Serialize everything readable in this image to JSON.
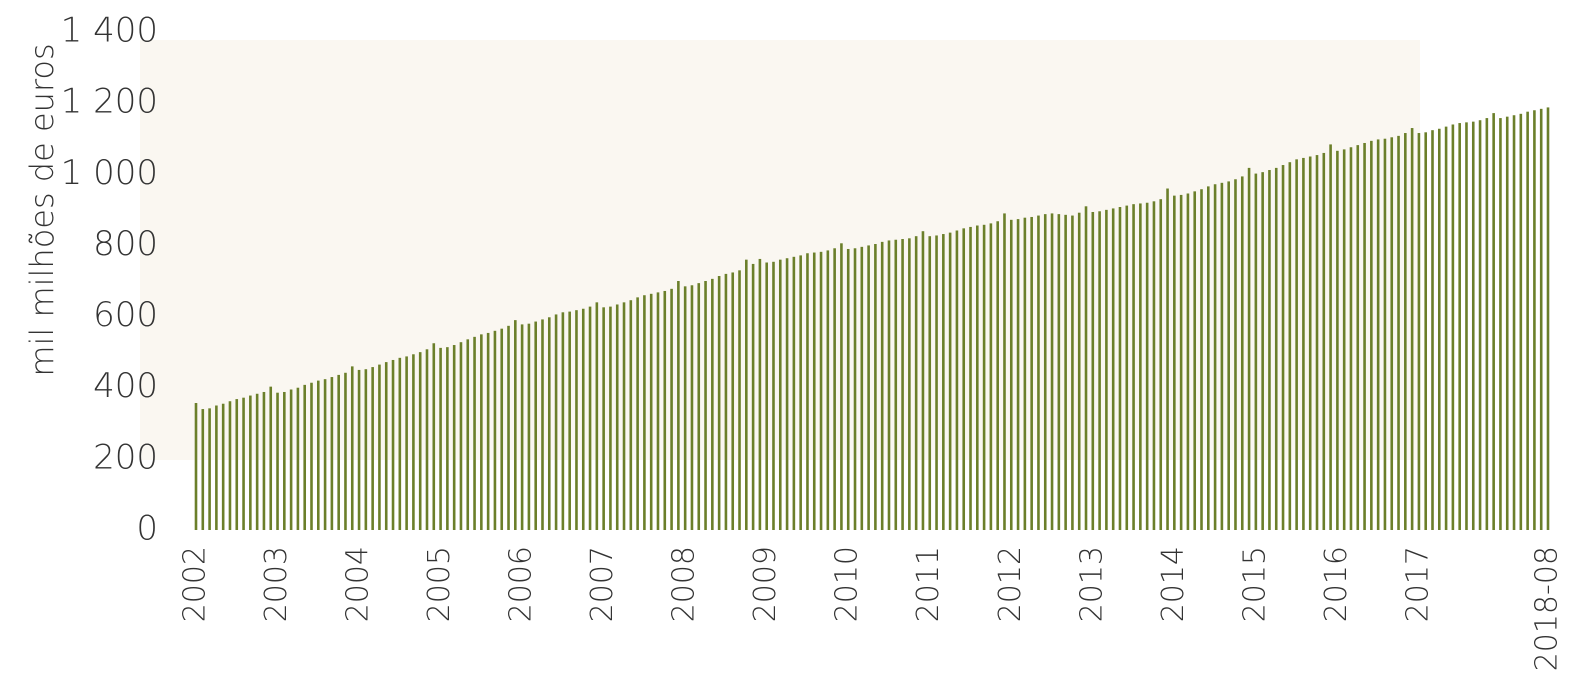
{
  "chart_data": {
    "type": "bar",
    "y_label": "mil milhões de euros",
    "color": "#6b7f2a",
    "ylim": [
      0,
      1400
    ],
    "yticks": [
      0,
      200,
      400,
      600,
      800,
      {
        "value": 1000,
        "label": "1 000"
      },
      {
        "value": 1200,
        "label": "1 200"
      },
      {
        "value": 1400,
        "label": "1 400"
      }
    ],
    "grid": false,
    "categories": [
      "2002",
      null,
      null,
      null,
      null,
      null,
      null,
      null,
      null,
      null,
      null,
      null,
      "2003",
      null,
      null,
      null,
      null,
      null,
      null,
      null,
      null,
      null,
      null,
      null,
      "2004",
      null,
      null,
      null,
      null,
      null,
      null,
      null,
      null,
      null,
      null,
      null,
      "2005",
      null,
      null,
      null,
      null,
      null,
      null,
      null,
      null,
      null,
      null,
      null,
      "2006",
      null,
      null,
      null,
      null,
      null,
      null,
      null,
      null,
      null,
      null,
      null,
      "2007",
      null,
      null,
      null,
      null,
      null,
      null,
      null,
      null,
      null,
      null,
      null,
      "2008",
      null,
      null,
      null,
      null,
      null,
      null,
      null,
      null,
      null,
      null,
      null,
      "2009",
      null,
      null,
      null,
      null,
      null,
      null,
      null,
      null,
      null,
      null,
      null,
      "2010",
      null,
      null,
      null,
      null,
      null,
      null,
      null,
      null,
      null,
      null,
      null,
      "2011",
      null,
      null,
      null,
      null,
      null,
      null,
      null,
      null,
      null,
      null,
      null,
      "2012",
      null,
      null,
      null,
      null,
      null,
      null,
      null,
      null,
      null,
      null,
      null,
      "2013",
      null,
      null,
      null,
      null,
      null,
      null,
      null,
      null,
      null,
      null,
      null,
      "2014",
      null,
      null,
      null,
      null,
      null,
      null,
      null,
      null,
      null,
      null,
      null,
      "2015",
      null,
      null,
      null,
      null,
      null,
      null,
      null,
      null,
      null,
      null,
      null,
      "2016",
      null,
      null,
      null,
      null,
      null,
      null,
      null,
      null,
      null,
      null,
      null,
      "2017",
      null,
      null,
      null,
      null,
      null,
      null,
      null,
      null,
      null,
      null,
      null,
      null,
      null,
      null,
      null,
      null,
      null,
      null,
      "2018-08"
    ],
    "values": [
      357,
      340,
      342,
      350,
      355,
      362,
      368,
      372,
      378,
      383,
      388,
      403,
      386,
      388,
      395,
      400,
      408,
      414,
      420,
      424,
      430,
      436,
      442,
      460,
      450,
      452,
      458,
      465,
      472,
      478,
      484,
      488,
      494,
      500,
      508,
      525,
      512,
      514,
      520,
      528,
      536,
      543,
      550,
      554,
      560,
      566,
      574,
      590,
      578,
      580,
      586,
      592,
      598,
      606,
      612,
      614,
      618,
      622,
      628,
      640,
      626,
      628,
      634,
      640,
      646,
      654,
      660,
      664,
      668,
      672,
      678,
      700,
      685,
      688,
      694,
      700,
      706,
      714,
      720,
      724,
      730,
      760,
      748,
      762,
      752,
      754,
      760,
      764,
      768,
      772,
      778,
      780,
      782,
      786,
      792,
      806,
      790,
      792,
      796,
      800,
      804,
      810,
      814,
      816,
      818,
      820,
      826,
      840,
      826,
      828,
      832,
      836,
      842,
      848,
      852,
      856,
      858,
      862,
      868,
      890,
      872,
      874,
      878,
      880,
      884,
      888,
      890,
      888,
      886,
      884,
      892,
      910,
      894,
      896,
      900,
      904,
      908,
      912,
      916,
      918,
      920,
      924,
      930,
      960,
      940,
      942,
      946,
      952,
      958,
      966,
      972,
      976,
      980,
      986,
      994,
      1018,
      1002,
      1006,
      1012,
      1018,
      1026,
      1034,
      1042,
      1046,
      1050,
      1054,
      1060,
      1084,
      1066,
      1070,
      1076,
      1082,
      1088,
      1094,
      1098,
      1100,
      1104,
      1108,
      1116,
      1130,
      1116,
      1118,
      1124,
      1128,
      1134,
      1140,
      1144,
      1146,
      1148,
      1152,
      1158,
      1172,
      1158,
      1162,
      1166,
      1170,
      1176,
      1180,
      1184,
      1188
    ]
  }
}
